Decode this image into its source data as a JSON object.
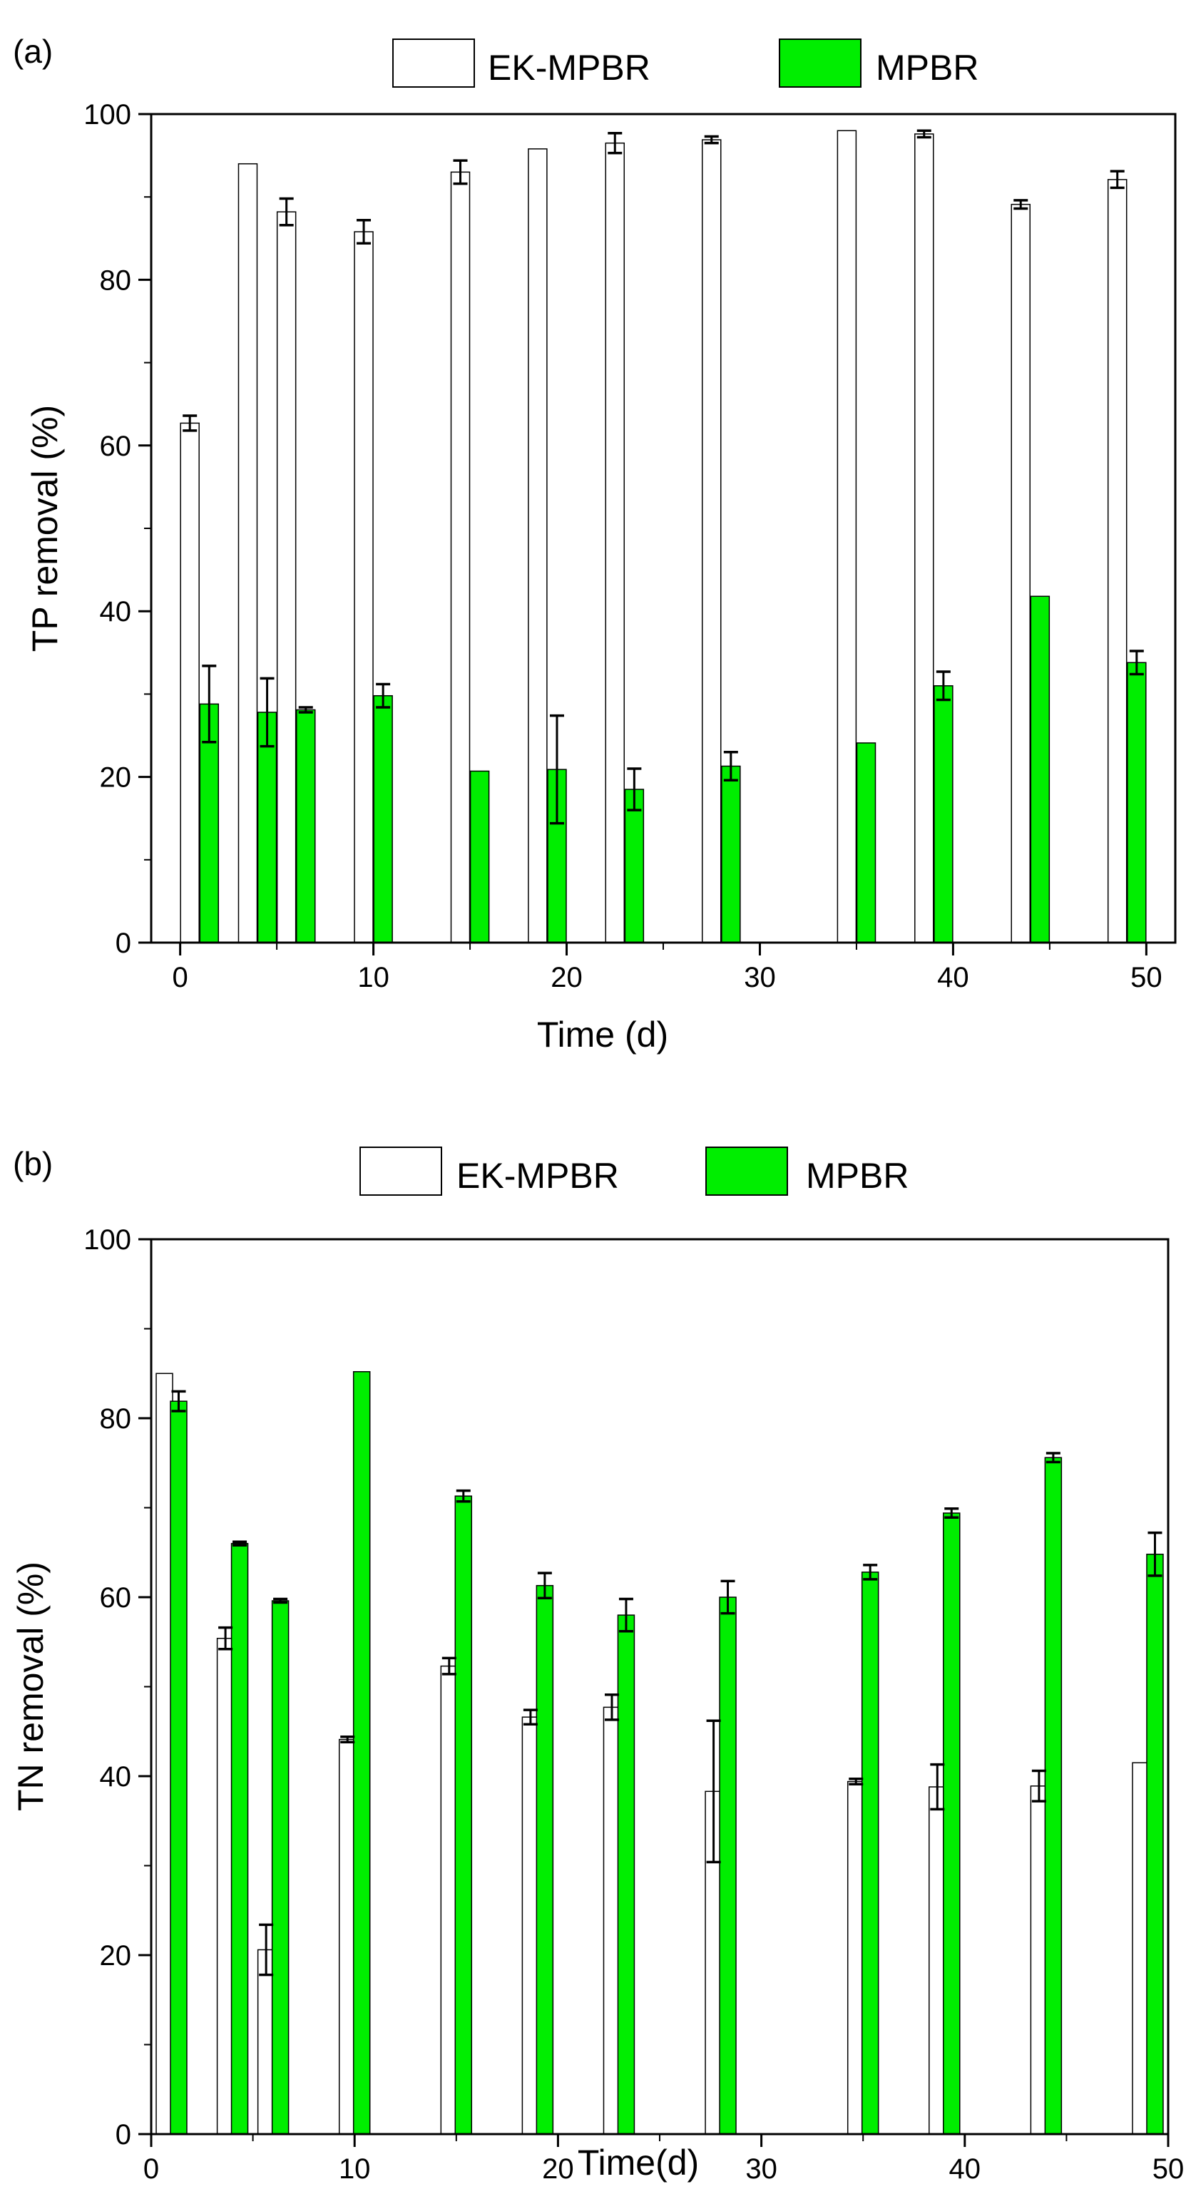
{
  "chart_data": [
    {
      "panel_label": "(a)",
      "type": "bar",
      "ylabel": "TP removal (%)",
      "xlabel": "Time (d)",
      "xlim": [
        -1.5,
        51.5
      ],
      "ylim": [
        0,
        100
      ],
      "xticks": [
        0,
        10,
        20,
        30,
        40,
        50
      ],
      "yticks": [
        0,
        20,
        40,
        60,
        80,
        100
      ],
      "series": [
        {
          "name": "EK-MPBR",
          "color": "#ffffff",
          "points": [
            {
              "t": 0.5,
              "v": 62.7,
              "err": 0.9
            },
            {
              "t": 3.5,
              "v": 94.0,
              "err": 0
            },
            {
              "t": 5.5,
              "v": 88.2,
              "err": 1.6
            },
            {
              "t": 9.5,
              "v": 85.8,
              "err": 1.4
            },
            {
              "t": 14.5,
              "v": 93.0,
              "err": 1.4
            },
            {
              "t": 18.5,
              "v": 95.8,
              "err": 0
            },
            {
              "t": 22.5,
              "v": 96.5,
              "err": 1.2
            },
            {
              "t": 27.5,
              "v": 96.9,
              "err": 0.4
            },
            {
              "t": 34.5,
              "v": 98.0,
              "err": 0
            },
            {
              "t": 38.5,
              "v": 97.6,
              "err": 0.4
            },
            {
              "t": 43.5,
              "v": 89.1,
              "err": 0.5
            },
            {
              "t": 48.5,
              "v": 92.1,
              "err": 1.0
            }
          ]
        },
        {
          "name": "MPBR",
          "color": "#00ee00",
          "points": [
            {
              "t": 1.5,
              "v": 28.8,
              "err": 4.6
            },
            {
              "t": 4.5,
              "v": 27.8,
              "err": 4.1
            },
            {
              "t": 6.5,
              "v": 28.1,
              "err": 0.3
            },
            {
              "t": 10.5,
              "v": 29.8,
              "err": 1.4
            },
            {
              "t": 15.5,
              "v": 20.7,
              "err": 0
            },
            {
              "t": 19.5,
              "v": 20.9,
              "err": 6.5
            },
            {
              "t": 23.5,
              "v": 18.5,
              "err": 2.5
            },
            {
              "t": 28.5,
              "v": 21.3,
              "err": 1.7
            },
            {
              "t": 35.5,
              "v": 24.1,
              "err": 0
            },
            {
              "t": 39.5,
              "v": 31.0,
              "err": 1.7
            },
            {
              "t": 44.5,
              "v": 41.8,
              "err": 0
            },
            {
              "t": 49.5,
              "v": 33.8,
              "err": 1.4
            }
          ]
        }
      ]
    },
    {
      "panel_label": "(b)",
      "type": "bar",
      "ylabel": "TN removal (%)",
      "xlabel": "Time(d)",
      "xlim": [
        0,
        50
      ],
      "ylim": [
        0,
        100
      ],
      "xticks": [
        0,
        10,
        20,
        30,
        40,
        50
      ],
      "yticks": [
        0,
        20,
        40,
        60,
        80,
        100
      ],
      "series": [
        {
          "name": "EK-MPBR",
          "color": "#ffffff",
          "points": [
            {
              "t": 0.65,
              "v": 85.0,
              "err": 0
            },
            {
              "t": 3.65,
              "v": 55.4,
              "err": 1.2
            },
            {
              "t": 5.65,
              "v": 20.6,
              "err": 2.8
            },
            {
              "t": 9.65,
              "v": 44.1,
              "err": 0.3
            },
            {
              "t": 14.65,
              "v": 52.3,
              "err": 0.9
            },
            {
              "t": 18.65,
              "v": 46.6,
              "err": 0.8
            },
            {
              "t": 22.65,
              "v": 47.7,
              "err": 1.4
            },
            {
              "t": 27.65,
              "v": 38.3,
              "err": 7.9
            },
            {
              "t": 34.65,
              "v": 39.4,
              "err": 0.3
            },
            {
              "t": 38.65,
              "v": 38.8,
              "err": 2.5
            },
            {
              "t": 43.65,
              "v": 38.9,
              "err": 1.7
            },
            {
              "t": 48.65,
              "v": 41.5,
              "err": 0
            }
          ]
        },
        {
          "name": "MPBR",
          "color": "#00ee00",
          "points": [
            {
              "t": 1.35,
              "v": 81.9,
              "err": 1.1
            },
            {
              "t": 4.35,
              "v": 66.0,
              "err": 0.2
            },
            {
              "t": 6.35,
              "v": 59.6,
              "err": 0.2
            },
            {
              "t": 10.35,
              "v": 85.2,
              "err": 0
            },
            {
              "t": 15.35,
              "v": 71.3,
              "err": 0.6
            },
            {
              "t": 19.35,
              "v": 61.3,
              "err": 1.4
            },
            {
              "t": 23.35,
              "v": 58.0,
              "err": 1.8
            },
            {
              "t": 28.35,
              "v": 60.0,
              "err": 1.8
            },
            {
              "t": 35.35,
              "v": 62.8,
              "err": 0.8
            },
            {
              "t": 39.35,
              "v": 69.4,
              "err": 0.5
            },
            {
              "t": 44.35,
              "v": 75.6,
              "err": 0.5
            },
            {
              "t": 49.35,
              "v": 64.8,
              "err": 2.4
            }
          ]
        }
      ]
    }
  ]
}
